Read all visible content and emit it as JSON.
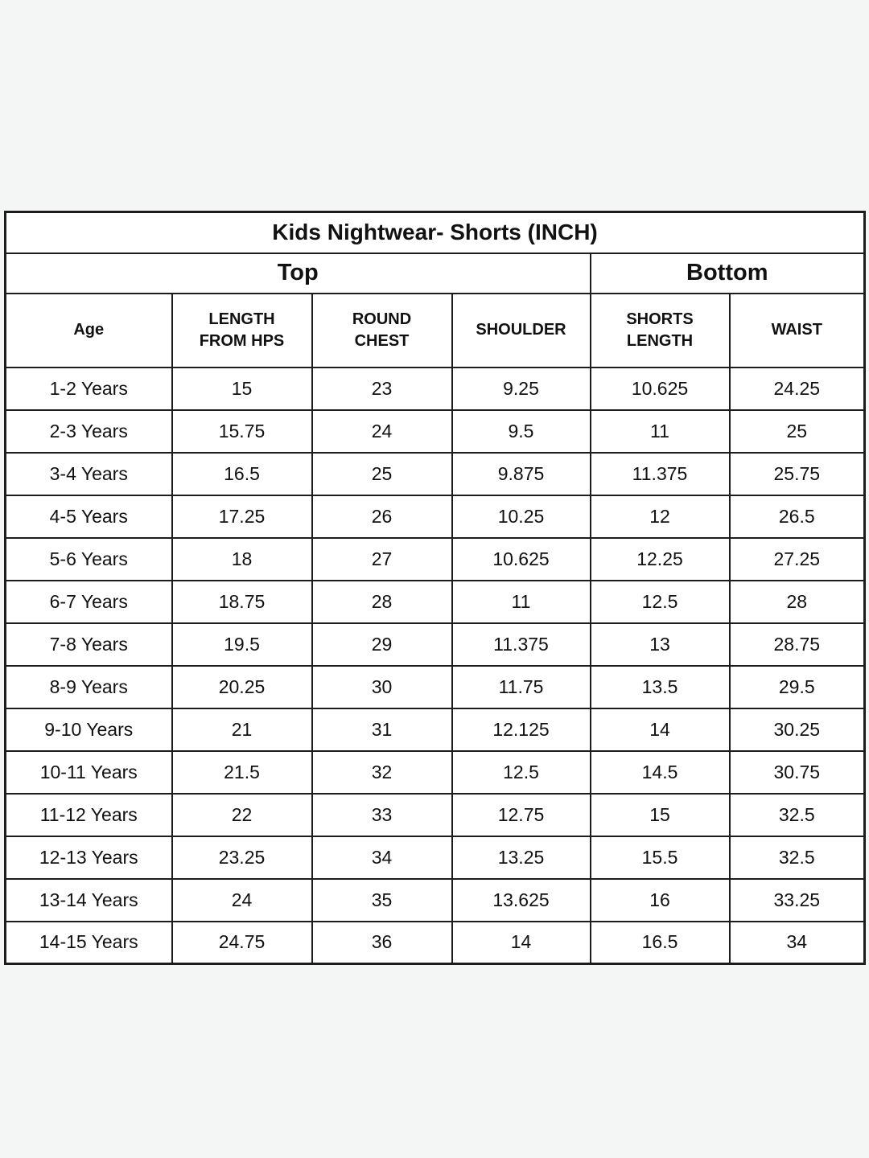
{
  "page": {
    "background_color": "#f4f6f5"
  },
  "chart_data": {
    "type": "table",
    "title": "Kids Nightwear- Shorts (INCH)",
    "column_groups": [
      {
        "label": "Top",
        "span": 4
      },
      {
        "label": "Bottom",
        "span": 2
      }
    ],
    "columns": [
      "Age",
      "LENGTH FROM HPS",
      "ROUND CHEST",
      "SHOULDER",
      "SHORTS LENGTH",
      "WAIST"
    ],
    "rows": [
      [
        "1-2 Years",
        "15",
        "23",
        "9.25",
        "10.625",
        "24.25"
      ],
      [
        "2-3 Years",
        "15.75",
        "24",
        "9.5",
        "11",
        "25"
      ],
      [
        "3-4 Years",
        "16.5",
        "25",
        "9.875",
        "11.375",
        "25.75"
      ],
      [
        "4-5 Years",
        "17.25",
        "26",
        "10.25",
        "12",
        "26.5"
      ],
      [
        "5-6 Years",
        "18",
        "27",
        "10.625",
        "12.25",
        "27.25"
      ],
      [
        "6-7 Years",
        "18.75",
        "28",
        "11",
        "12.5",
        "28"
      ],
      [
        "7-8 Years",
        "19.5",
        "29",
        "11.375",
        "13",
        "28.75"
      ],
      [
        "8-9 Years",
        "20.25",
        "30",
        "11.75",
        "13.5",
        "29.5"
      ],
      [
        "9-10 Years",
        "21",
        "31",
        "12.125",
        "14",
        "30.25"
      ],
      [
        "10-11 Years",
        "21.5",
        "32",
        "12.5",
        "14.5",
        "30.75"
      ],
      [
        "11-12 Years",
        "22",
        "33",
        "12.75",
        "15",
        "32.5"
      ],
      [
        "12-13 Years",
        "23.25",
        "34",
        "13.25",
        "15.5",
        "32.5"
      ],
      [
        "13-14 Years",
        "24",
        "35",
        "13.625",
        "16",
        "33.25"
      ],
      [
        "14-15 Years",
        "24.75",
        "36",
        "14",
        "16.5",
        "34"
      ]
    ],
    "border_color": "#1c1c1c",
    "cell_background": "#ffffff",
    "text_color": "#111111"
  }
}
